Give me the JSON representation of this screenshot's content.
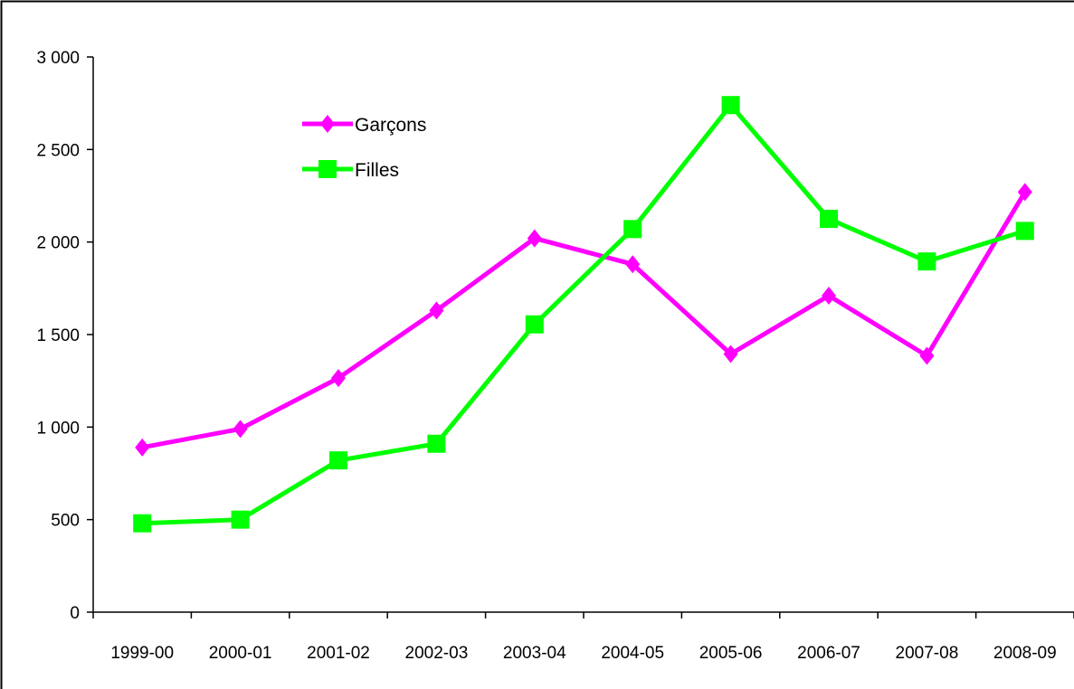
{
  "chart_data": {
    "type": "line",
    "categories": [
      "1999-00",
      "2000-01",
      "2001-02",
      "2002-03",
      "2003-04",
      "2004-05",
      "2005-06",
      "2006-07",
      "2007-08",
      "2008-09"
    ],
    "series": [
      {
        "name": "Garçons",
        "color": "#ff00ff",
        "marker": "diamond",
        "values": [
          890,
          990,
          1265,
          1630,
          2020,
          1880,
          1395,
          1710,
          1385,
          2270
        ]
      },
      {
        "name": "Filles",
        "color": "#00ff00",
        "marker": "square",
        "values": [
          480,
          500,
          820,
          910,
          1555,
          2070,
          2740,
          2125,
          1895,
          2060
        ]
      }
    ],
    "y_ticks": [
      {
        "value": 0,
        "label": "0"
      },
      {
        "value": 500,
        "label": "500"
      },
      {
        "value": 1000,
        "label": "1 000"
      },
      {
        "value": 1500,
        "label": "1 500"
      },
      {
        "value": 2000,
        "label": "2 000"
      },
      {
        "value": 2500,
        "label": "2 500"
      },
      {
        "value": 3000,
        "label": "3 000"
      }
    ],
    "ylim": [
      0,
      3000
    ],
    "grid": false,
    "legend": "top-left",
    "title": "",
    "xlabel": "",
    "ylabel": ""
  }
}
